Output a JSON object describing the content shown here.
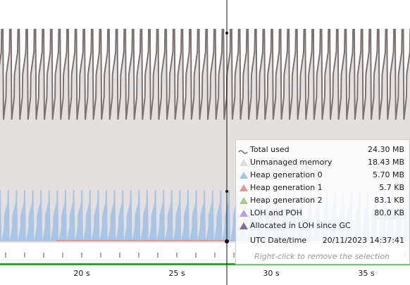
{
  "timeline": {
    "axis_labels": [
      "20 s",
      "25 s",
      "30 s",
      "35 s"
    ]
  },
  "tooltip": {
    "rows": [
      {
        "label": "Total used",
        "value": "24.30 MB"
      },
      {
        "label": "Unmanaged memory",
        "value": "18.43 MB"
      },
      {
        "label": "Heap generation 0",
        "value": "5.70 MB"
      },
      {
        "label": "Heap generation 1",
        "value": "5.7 KB"
      },
      {
        "label": "Heap generation 2",
        "value": "83.1 KB"
      },
      {
        "label": "LOH and POH",
        "value": "80.0 KB"
      },
      {
        "label": "Allocated in LOH since GC"
      }
    ],
    "date_label": "UTC Date/time",
    "date_value": "20/11/2023 14:37:41",
    "hint": "Right-click to remove the selection"
  }
}
